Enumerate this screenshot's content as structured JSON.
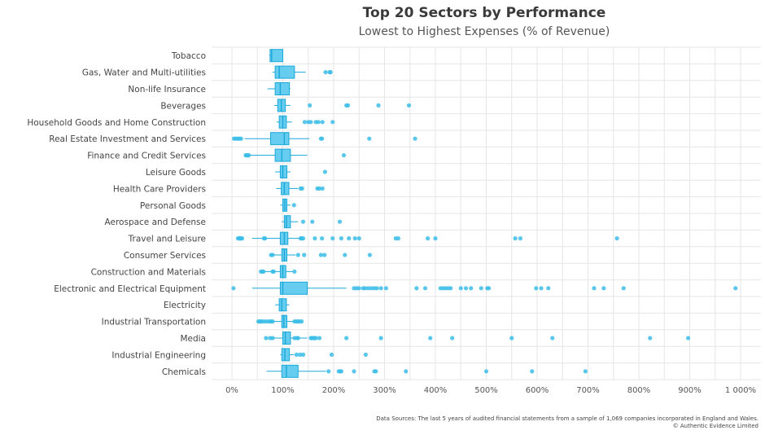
{
  "chart_data": {
    "type": "boxplot",
    "title": "Top 20 Sectors by Performance",
    "subtitle": "Lowest to Highest Expenses (% of Revenue)",
    "xlim": [
      -40,
      1040
    ],
    "grid": true,
    "x_ticks": [
      0,
      100,
      200,
      300,
      400,
      500,
      600,
      700,
      800,
      900,
      1000
    ],
    "x_tick_labels": [
      "0%",
      "100%",
      "200%",
      "300%",
      "400%",
      "500%",
      "600%",
      "700%",
      "800%",
      "900%",
      "1 000%"
    ],
    "colors": {
      "box_fill": "#66cdf0",
      "box_edge": "#1aa8d8",
      "point": "#3cbde8",
      "grid": "#e6e6e6"
    },
    "categories": [
      {
        "name": "Tobacco",
        "whisker_low": 73,
        "q1": 75,
        "median": 78,
        "q3": 100,
        "whisker_high": 101,
        "outliers": []
      },
      {
        "name": "Gas, Water and Multi-utilities",
        "whisker_low": 80,
        "q1": 85,
        "median": 93,
        "q3": 123,
        "whisker_high": 145,
        "outliers": [
          184,
          192,
          194
        ]
      },
      {
        "name": "Non-life Insurance",
        "whisker_low": 70,
        "q1": 85,
        "median": 95,
        "q3": 113,
        "whisker_high": 115,
        "outliers": []
      },
      {
        "name": "Beverages",
        "whisker_low": 83,
        "q1": 90,
        "median": 97,
        "q3": 105,
        "whisker_high": 115,
        "outliers": [
          153,
          225,
          228,
          288,
          348
        ]
      },
      {
        "name": "Household Goods and Home Construction",
        "whisker_low": 88,
        "q1": 93,
        "median": 100,
        "q3": 107,
        "whisker_high": 118,
        "outliers": [
          143,
          150,
          155,
          165,
          170,
          178,
          198
        ]
      },
      {
        "name": "Real Estate Investment and Services",
        "whisker_low": 25,
        "q1": 76,
        "median": 103,
        "q3": 112,
        "whisker_high": 152,
        "outliers": [
          4,
          7,
          10,
          12,
          15,
          18,
          175,
          177,
          270,
          360
        ]
      },
      {
        "name": "Finance and Credit Services",
        "whisker_low": 30,
        "q1": 85,
        "median": 98,
        "q3": 115,
        "whisker_high": 148,
        "outliers": [
          27,
          29,
          31,
          33,
          220
        ]
      },
      {
        "name": "Leisure Goods",
        "whisker_low": 85,
        "q1": 95,
        "median": 100,
        "q3": 108,
        "whisker_high": 115,
        "outliers": [
          183
        ]
      },
      {
        "name": "Health Care Providers",
        "whisker_low": 87,
        "q1": 97,
        "median": 103,
        "q3": 112,
        "whisker_high": 130,
        "outliers": [
          135,
          138,
          168,
          172,
          178
        ]
      },
      {
        "name": "Personal Goods",
        "whisker_low": 95,
        "q1": 100,
        "median": 104,
        "q3": 108,
        "whisker_high": 115,
        "outliers": [
          122
        ]
      },
      {
        "name": "Aerospace and Defense",
        "whisker_low": 98,
        "q1": 103,
        "median": 107,
        "q3": 115,
        "whisker_high": 130,
        "outliers": [
          140,
          158,
          212
        ]
      },
      {
        "name": "Travel and Leisure",
        "whisker_low": 40,
        "q1": 95,
        "median": 103,
        "q3": 110,
        "whisker_high": 140,
        "outliers": [
          12,
          14,
          15,
          17,
          18,
          20,
          63,
          65,
          135,
          137,
          140,
          163,
          177,
          198,
          215,
          230,
          242,
          250,
          322,
          327,
          385,
          400,
          557,
          567,
          757
        ]
      },
      {
        "name": "Consumer Services",
        "whisker_low": 75,
        "q1": 98,
        "median": 103,
        "q3": 108,
        "whisker_high": 125,
        "outliers": [
          77,
          80,
          130,
          142,
          175,
          182,
          222,
          271
        ]
      },
      {
        "name": "Construction and Materials",
        "whisker_low": 62,
        "q1": 95,
        "median": 100,
        "q3": 106,
        "whisker_high": 120,
        "outliers": [
          57,
          60,
          62,
          80,
          82,
          123
        ]
      },
      {
        "name": "Electronic and Electrical Equipment",
        "whisker_low": 40,
        "q1": 95,
        "median": 100,
        "q3": 148,
        "whisker_high": 225,
        "outliers": [
          3,
          240,
          245,
          250,
          258,
          262,
          268,
          274,
          280,
          285,
          293,
          303,
          363,
          380,
          410,
          415,
          420,
          425,
          430,
          450,
          460,
          470,
          490,
          502,
          505,
          598,
          608,
          622,
          712,
          731,
          770,
          990
        ]
      },
      {
        "name": "Electricity",
        "whisker_low": 85,
        "q1": 93,
        "median": 98,
        "q3": 107,
        "whisker_high": 113,
        "outliers": []
      },
      {
        "name": "Industrial Transportation",
        "whisker_low": 60,
        "q1": 98,
        "median": 102,
        "q3": 108,
        "whisker_high": 125,
        "outliers": [
          52,
          55,
          57,
          60,
          65,
          70,
          75,
          77,
          80,
          123,
          127,
          130,
          133,
          137
        ]
      },
      {
        "name": "Media",
        "whisker_low": 75,
        "q1": 100,
        "median": 105,
        "q3": 115,
        "whisker_high": 148,
        "outliers": [
          67,
          75,
          80,
          123,
          128,
          130,
          155,
          157,
          160,
          162,
          165,
          172,
          225,
          293,
          390,
          433,
          550,
          630,
          822,
          897
        ]
      },
      {
        "name": "Industrial Engineering",
        "whisker_low": 95,
        "q1": 98,
        "median": 104,
        "q3": 113,
        "whisker_high": 122,
        "outliers": [
          127,
          134,
          140,
          196,
          263
        ]
      },
      {
        "name": "Chemicals",
        "whisker_low": 68,
        "q1": 98,
        "median": 107,
        "q3": 130,
        "whisker_high": 185,
        "outliers": [
          190,
          210,
          213,
          215,
          240,
          280,
          283,
          342,
          500,
          590,
          695
        ]
      }
    ]
  },
  "footer": {
    "source": "Data Sources: The last 5 years of audited financial statements from a sample of 1,069 companies incorporated in England and Wales.",
    "credit": "© Authentic Evidence Limited"
  }
}
